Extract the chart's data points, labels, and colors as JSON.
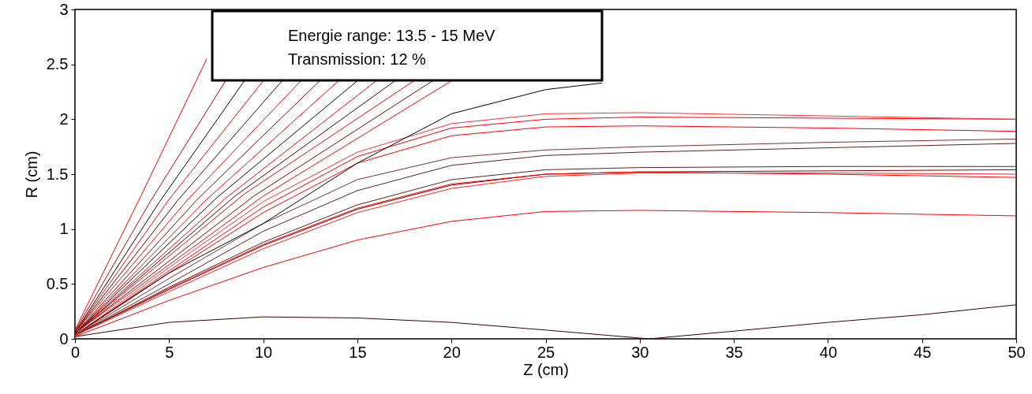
{
  "chart_data": {
    "type": "line",
    "xlabel": "Z (cm)",
    "ylabel": "R (cm)",
    "annotations": [
      "Energie range: 13.5 - 15 MeV",
      "Transmission: 12 %"
    ],
    "xlim": [
      0,
      50
    ],
    "ylim": [
      0,
      3
    ],
    "xticks": [
      0,
      5,
      10,
      15,
      20,
      25,
      30,
      35,
      40,
      45,
      50
    ],
    "yticks": [
      0,
      0.5,
      1,
      1.5,
      2,
      2.5,
      3
    ],
    "grid": false,
    "line_style": "solid",
    "marker": "none",
    "series": [
      {
        "color": "#3c0000",
        "x": [
          0,
          5,
          10,
          15,
          20,
          25,
          30.5,
          35,
          40,
          45,
          50
        ],
        "values": [
          0.02,
          0.15,
          0.2,
          0.19,
          0.15,
          0.08,
          0,
          0.07,
          0.15,
          0.22,
          0.31
        ]
      },
      {
        "color": "#ff0000",
        "x": [
          0,
          5,
          10,
          15,
          20,
          25,
          30,
          40,
          50
        ],
        "values": [
          0.02,
          0.35,
          0.65,
          0.9,
          1.07,
          1.16,
          1.17,
          1.15,
          1.12
        ]
      },
      {
        "color": "#800000",
        "x": [
          0,
          5,
          10,
          15,
          20,
          25,
          30,
          40,
          50
        ],
        "values": [
          0.03,
          0.45,
          0.85,
          1.18,
          1.4,
          1.5,
          1.52,
          1.53,
          1.54
        ]
      },
      {
        "color": "#ff0000",
        "x": [
          0,
          5,
          10,
          15,
          20,
          25,
          30,
          40,
          50
        ],
        "values": [
          0.03,
          0.46,
          0.86,
          1.19,
          1.41,
          1.5,
          1.52,
          1.5,
          1.47
        ]
      },
      {
        "color": "#602020",
        "x": [
          0,
          5,
          10,
          15,
          20,
          25,
          30,
          40,
          50
        ],
        "values": [
          0.03,
          0.47,
          0.88,
          1.22,
          1.45,
          1.54,
          1.56,
          1.57,
          1.57
        ]
      },
      {
        "color": "#ff2020",
        "x": [
          0,
          5,
          10,
          15,
          20,
          25,
          30,
          40,
          50
        ],
        "values": [
          0.03,
          0.43,
          0.82,
          1.15,
          1.37,
          1.48,
          1.51,
          1.51,
          1.5
        ]
      },
      {
        "color": "#602020",
        "x": [
          0,
          5,
          10,
          15,
          20,
          25,
          30,
          40,
          50
        ],
        "values": [
          0.03,
          0.5,
          0.98,
          1.35,
          1.58,
          1.67,
          1.7,
          1.74,
          1.78
        ]
      },
      {
        "color": "#803030",
        "x": [
          0,
          5,
          10,
          15,
          20,
          25,
          30,
          40,
          50
        ],
        "values": [
          0.03,
          0.55,
          1.05,
          1.45,
          1.65,
          1.72,
          1.75,
          1.79,
          1.82
        ]
      },
      {
        "color": "#ff0000",
        "x": [
          0,
          5,
          10,
          15,
          20,
          25,
          30,
          40,
          50
        ],
        "values": [
          0.03,
          0.6,
          1.15,
          1.6,
          1.85,
          1.93,
          1.94,
          1.92,
          1.89
        ]
      },
      {
        "color": "#ff0000",
        "x": [
          0,
          5,
          10,
          15,
          20,
          25,
          30,
          40,
          50
        ],
        "values": [
          0.03,
          0.62,
          1.2,
          1.66,
          1.92,
          2.0,
          2.02,
          2.01,
          2.0
        ]
      },
      {
        "color": "#ff3030",
        "x": [
          0,
          5,
          10,
          15,
          20,
          25,
          30,
          40,
          50
        ],
        "values": [
          0.03,
          0.65,
          1.25,
          1.7,
          1.96,
          2.05,
          2.06,
          2.03,
          2.0
        ]
      },
      {
        "color": "#000000",
        "x": [
          0,
          5,
          10,
          15,
          20,
          25,
          28
        ],
        "values": [
          0.04,
          0.6,
          1.05,
          1.6,
          2.05,
          2.27,
          2.33
        ]
      },
      {
        "color": "#ff0000",
        "x": [
          0,
          10,
          20
        ],
        "values": [
          0.05,
          1.3,
          2.35
        ]
      },
      {
        "color": "#800000",
        "x": [
          0,
          9.5,
          19
        ],
        "values": [
          0.05,
          1.3,
          2.35
        ]
      },
      {
        "color": "#ff0000",
        "x": [
          0,
          9,
          18
        ],
        "values": [
          0.05,
          1.32,
          2.35
        ]
      },
      {
        "color": "#400000",
        "x": [
          0,
          8.5,
          17
        ],
        "values": [
          0.05,
          1.3,
          2.35
        ]
      },
      {
        "color": "#ff0000",
        "x": [
          0,
          8,
          16
        ],
        "values": [
          0.05,
          1.28,
          2.35
        ]
      },
      {
        "color": "#000000",
        "x": [
          0,
          7.5,
          15
        ],
        "values": [
          0.05,
          1.28,
          2.35
        ]
      },
      {
        "color": "#ff0000",
        "x": [
          0,
          7,
          14
        ],
        "values": [
          0.05,
          1.27,
          2.35
        ]
      },
      {
        "color": "#800000",
        "x": [
          0,
          6.5,
          13
        ],
        "values": [
          0.05,
          1.27,
          2.35
        ]
      },
      {
        "color": "#ff0000",
        "x": [
          0,
          6,
          12
        ],
        "values": [
          0.06,
          1.27,
          2.35
        ]
      },
      {
        "color": "#400000",
        "x": [
          0,
          5.5,
          11
        ],
        "values": [
          0.06,
          1.27,
          2.35
        ]
      },
      {
        "color": "#ff0000",
        "x": [
          0,
          5,
          10
        ],
        "values": [
          0.06,
          1.27,
          2.35
        ]
      },
      {
        "color": "#000000",
        "x": [
          0,
          4.5,
          9
        ],
        "values": [
          0.06,
          1.25,
          2.35
        ]
      },
      {
        "color": "#c00000",
        "x": [
          0,
          4,
          8
        ],
        "values": [
          0.07,
          1.25,
          2.35
        ]
      },
      {
        "color": "#ff0000",
        "x": [
          0,
          3.5,
          7
        ],
        "values": [
          0.08,
          1.3,
          2.55
        ]
      }
    ]
  }
}
